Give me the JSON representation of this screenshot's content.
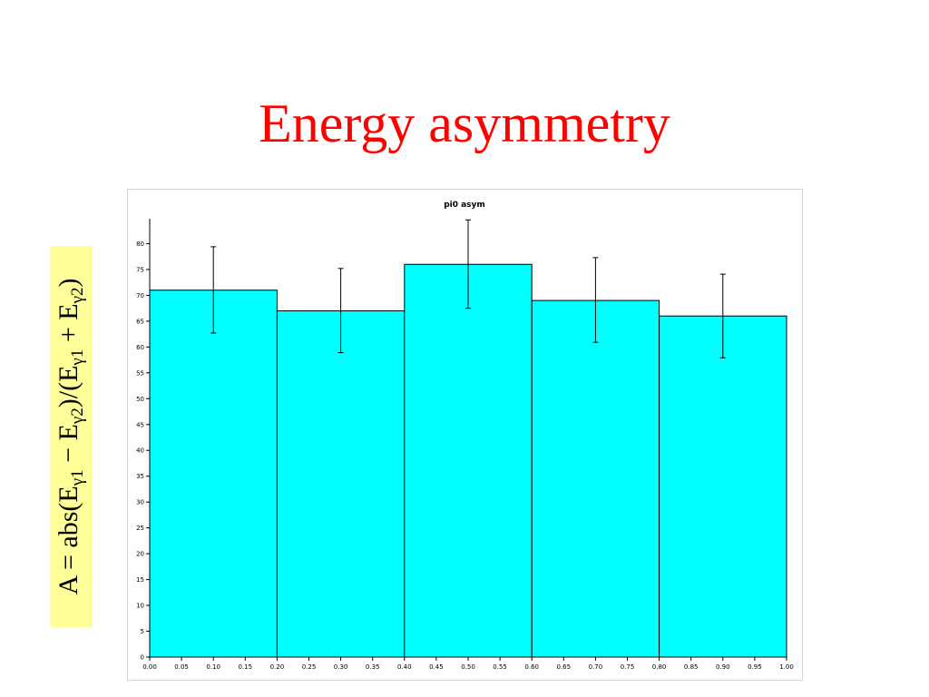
{
  "slide": {
    "title": "Energy asymmetry",
    "formula": {
      "lhs": "A = abs(E",
      "sub1": "γ1",
      "minus": " − E",
      "sub2": "γ2",
      "mid": ")/(E",
      "sub3": "γ1",
      "plus": " + E",
      "sub4": "γ2",
      "close": ")"
    }
  },
  "colors": {
    "title": "#ff0000",
    "bar_fill": "#00ffff",
    "formula_background": "#ffff99"
  },
  "chart_data": {
    "type": "bar",
    "title": "pi0 asym",
    "xlabel": "",
    "ylabel": "",
    "bins": [
      {
        "x0": 0.0,
        "x1": 0.2,
        "center": 0.1,
        "value": 71,
        "err_low": 62.7,
        "err_high": 79.4
      },
      {
        "x0": 0.2,
        "x1": 0.4,
        "center": 0.3,
        "value": 67,
        "err_low": 58.9,
        "err_high": 75.2
      },
      {
        "x0": 0.4,
        "x1": 0.6,
        "center": 0.5,
        "value": 76,
        "err_low": 67.5,
        "err_high": 84.6
      },
      {
        "x0": 0.6,
        "x1": 0.8,
        "center": 0.7,
        "value": 69,
        "err_low": 60.9,
        "err_high": 77.3
      },
      {
        "x0": 0.8,
        "x1": 1.0,
        "center": 0.9,
        "value": 66,
        "err_low": 57.9,
        "err_high": 74.1
      }
    ],
    "xlim": [
      0.0,
      1.0
    ],
    "ylim": [
      0,
      85
    ],
    "x_ticks": [
      "0.00",
      "0.05",
      "0.10",
      "0.15",
      "0.20",
      "0.25",
      "0.30",
      "0.35",
      "0.40",
      "0.45",
      "0.50",
      "0.55",
      "0.60",
      "0.65",
      "0.70",
      "0.75",
      "0.80",
      "0.85",
      "0.90",
      "0.95",
      "1.00"
    ],
    "y_ticks": [
      "0",
      "5",
      "10",
      "15",
      "20",
      "25",
      "30",
      "35",
      "40",
      "45",
      "50",
      "55",
      "60",
      "65",
      "70",
      "75",
      "80"
    ],
    "grid": false,
    "legend": "none"
  }
}
